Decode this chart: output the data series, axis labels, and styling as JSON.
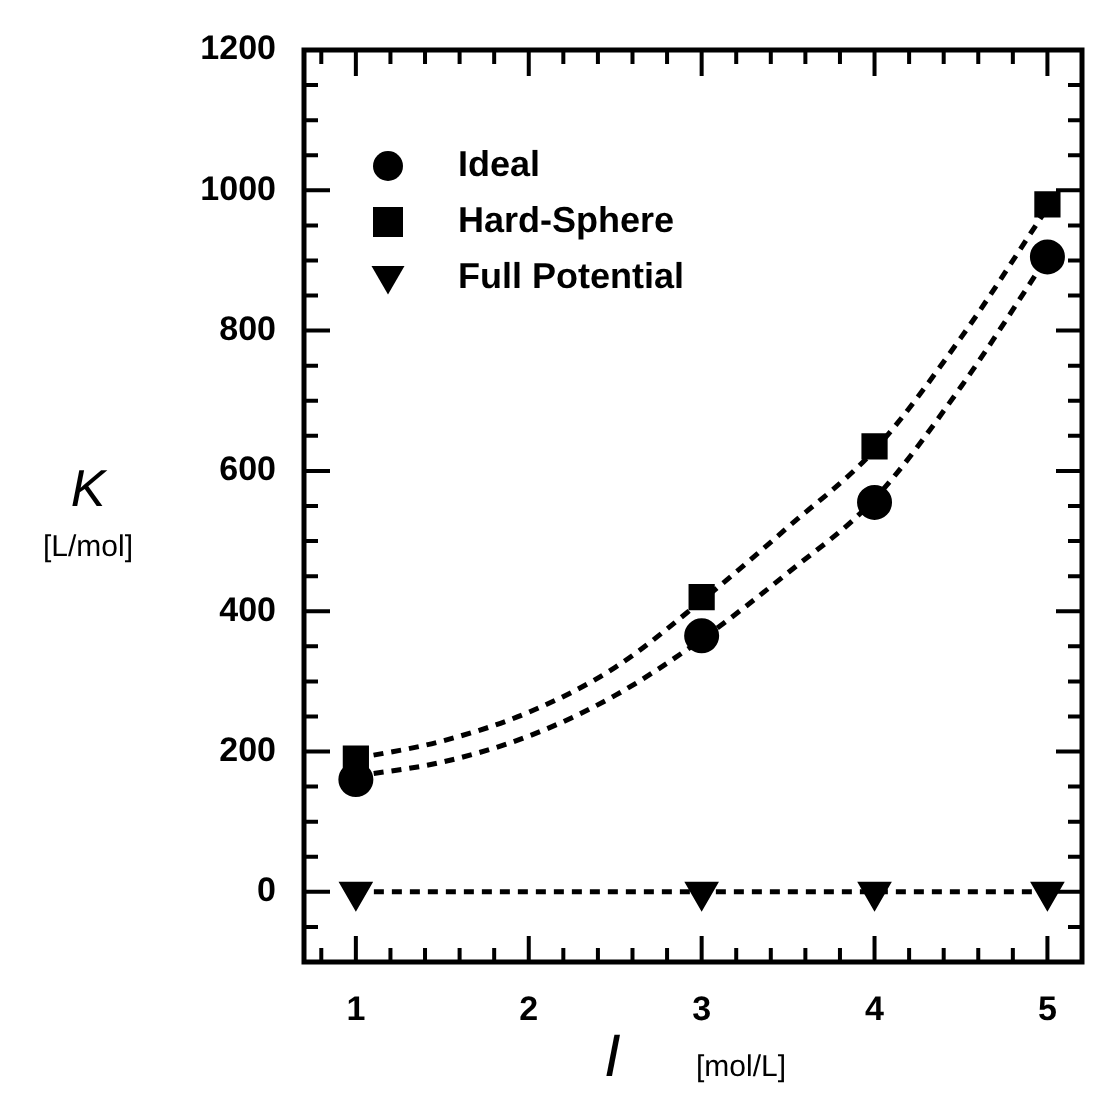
{
  "chart_data": {
    "type": "scatter",
    "xlabel": "I [mol/L]",
    "ylabel": "K [L/mol]",
    "xlim": [
      0.7,
      5.2
    ],
    "xticks": [
      {
        "value": 0.8,
        "label": null
      },
      1,
      {
        "value": 1.2,
        "label": null
      },
      {
        "value": 1.4,
        "label": null
      },
      {
        "value": 1.6,
        "label": null
      },
      {
        "value": 1.8,
        "label": null
      },
      2,
      {
        "value": 2.2,
        "label": null
      },
      {
        "value": 2.4,
        "label": null
      },
      {
        "value": 2.6,
        "label": null
      },
      {
        "value": 2.8,
        "label": null
      },
      3,
      {
        "value": 3.2,
        "label": null
      },
      {
        "value": 3.4,
        "label": null
      },
      {
        "value": 3.6,
        "label": null
      },
      {
        "value": 3.8,
        "label": null
      },
      4,
      {
        "value": 4.2,
        "label": null
      },
      {
        "value": 4.4,
        "label": null
      },
      {
        "value": 4.6,
        "label": null
      },
      {
        "value": 4.8,
        "label": null
      },
      5,
      {
        "value": 5.2,
        "label": null
      }
    ],
    "ylim": [
      -100,
      1200
    ],
    "yticks": [
      {
        "value": -50,
        "label": null
      },
      0,
      {
        "value": 50,
        "label": null
      },
      {
        "value": 100,
        "label": null
      },
      {
        "value": 150,
        "label": null
      },
      200,
      {
        "value": 250,
        "label": null
      },
      {
        "value": 300,
        "label": null
      },
      {
        "value": 350,
        "label": null
      },
      400,
      {
        "value": 450,
        "label": null
      },
      {
        "value": 500,
        "label": null
      },
      {
        "value": 550,
        "label": null
      },
      600,
      {
        "value": 650,
        "label": null
      },
      {
        "value": 700,
        "label": null
      },
      {
        "value": 750,
        "label": null
      },
      800,
      {
        "value": 850,
        "label": null
      },
      {
        "value": 900,
        "label": null
      },
      {
        "value": 950,
        "label": null
      },
      1000,
      {
        "value": 1050,
        "label": null
      },
      {
        "value": 1100,
        "label": null
      },
      {
        "value": 1150,
        "label": null
      },
      1200
    ],
    "grid": false,
    "legend": "top left",
    "series": [
      {
        "name": "Ideal",
        "color": "#000000",
        "marker": "circle",
        "x": [
          1,
          3,
          4,
          5
        ],
        "values": [
          160,
          365,
          555,
          905
        ]
      },
      {
        "name": "Hard-Sphere",
        "color": "#000000",
        "marker": "square",
        "x": [
          1,
          3,
          4,
          5
        ],
        "values": [
          190,
          420,
          635,
          980
        ]
      },
      {
        "name": "Full Potential",
        "color": "#000000",
        "marker": "triangle",
        "x": [
          1,
          3,
          4,
          5
        ],
        "values": [
          0,
          0,
          0,
          0
        ]
      },
      {
        "type": "line",
        "color": "#000000",
        "marker": "none",
        "line_style": "dashed",
        "x": [
          1,
          1.5,
          2,
          2.5,
          3,
          3.5,
          4,
          4.5,
          5
        ],
        "values": [
          165,
          185,
          222,
          280,
          360,
          455,
          560,
          720,
          905
        ]
      },
      {
        "type": "line",
        "color": "#000000",
        "marker": "none",
        "line_style": "dashed",
        "x": [
          1,
          1.5,
          2,
          2.5,
          3,
          3.5,
          4,
          4.5,
          5
        ],
        "values": [
          190,
          215,
          256,
          320,
          415,
          520,
          630,
          790,
          975
        ]
      },
      {
        "type": "line",
        "color": "#000000",
        "marker": "none",
        "line_style": "dashed",
        "x": [
          1,
          5
        ],
        "values": [
          0,
          0
        ]
      }
    ]
  }
}
